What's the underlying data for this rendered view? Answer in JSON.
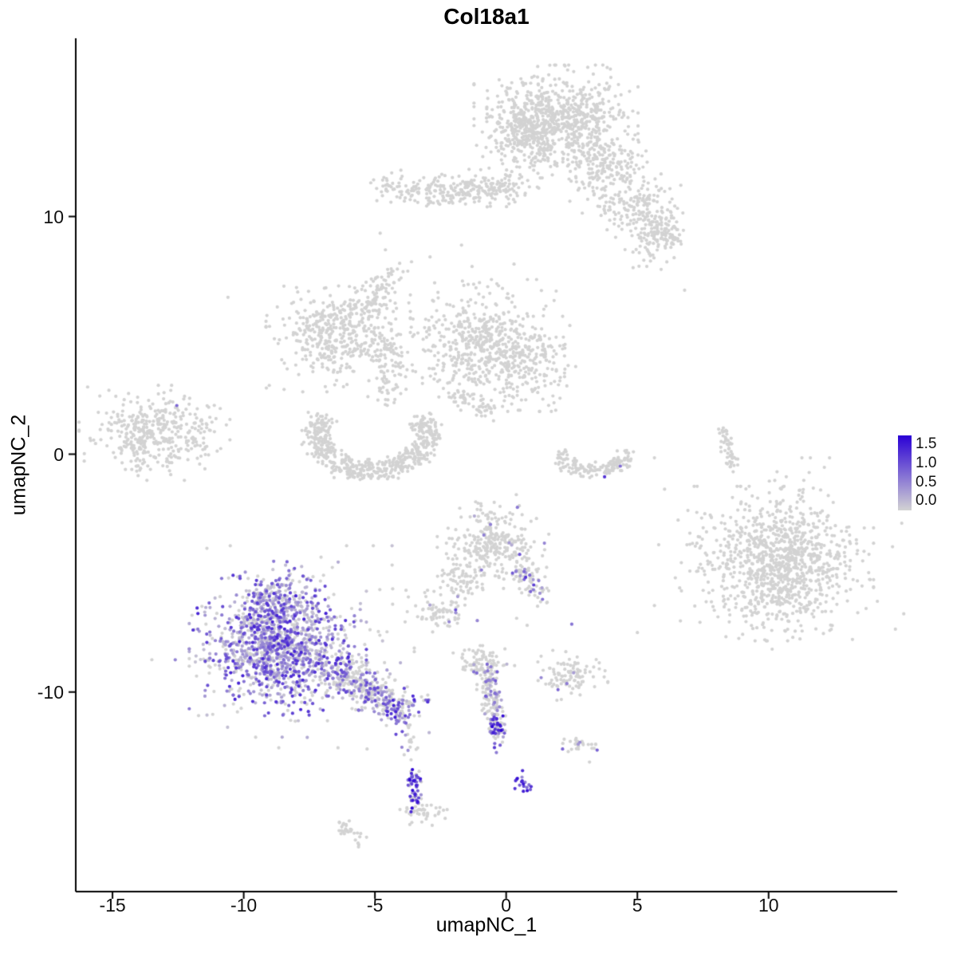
{
  "chart_data": {
    "type": "scatter",
    "title": "Col18a1",
    "xlabel": "umapNC_1",
    "ylabel": "umapNC_2",
    "xlim": [
      -16.4,
      14.9
    ],
    "ylim": [
      -18.4,
      17.5
    ],
    "xticks": [
      {
        "v": -15,
        "label": "-15"
      },
      {
        "v": -10,
        "label": "-10"
      },
      {
        "v": -5,
        "label": "-5"
      },
      {
        "v": 0,
        "label": "0"
      },
      {
        "v": 5,
        "label": "5"
      },
      {
        "v": 10,
        "label": "10"
      }
    ],
    "yticks": [
      {
        "v": 10,
        "label": "10"
      },
      {
        "v": 0,
        "label": "0"
      },
      {
        "v": -10,
        "label": "-10"
      }
    ],
    "grid": false,
    "point_radius": 2.1,
    "legend": {
      "labels": [
        {
          "v": 1.5,
          "text": "1.5"
        },
        {
          "v": 1.0,
          "text": "1.0"
        },
        {
          "v": 0.5,
          "text": "0.5"
        },
        {
          "v": 0.0,
          "text": "0.0"
        }
      ],
      "low_color": "#D3D3D3",
      "high_color": "#2A00D5",
      "scale_max": 1.65,
      "bar_value_top": 1.72,
      "bar_value_bottom": -0.24
    },
    "clusters": [
      {
        "name": "top-cap",
        "shape": "blob",
        "x": 1.9,
        "y": 14.0,
        "sx": 1.25,
        "sy": 0.95,
        "n": 820
      },
      {
        "name": "top-cap-left",
        "shape": "blob",
        "x": 0.6,
        "y": 13.4,
        "sx": 0.5,
        "sy": 0.6,
        "n": 120
      },
      {
        "name": "top-right-lobe",
        "shape": "blob",
        "x": 3.8,
        "y": 12.1,
        "sx": 0.75,
        "sy": 0.6,
        "n": 150
      },
      {
        "name": "top-band",
        "shape": "line",
        "x": -3.7,
        "y": 11.0,
        "x2": 0.7,
        "y2": 11.3,
        "jitter": 0.32,
        "n": 250
      },
      {
        "name": "band-left-tip",
        "shape": "blob",
        "x": -4.4,
        "y": 11.2,
        "sx": 0.35,
        "sy": 0.3,
        "n": 35
      },
      {
        "name": "right-upper-blob",
        "shape": "blob",
        "x": 4.9,
        "y": 10.5,
        "sx": 0.8,
        "sy": 0.55,
        "n": 160
      },
      {
        "name": "right-upper-tail",
        "shape": "line",
        "x": 5.5,
        "y": 10.0,
        "x2": 6.4,
        "y2": 9.1,
        "jitter": 0.28,
        "n": 70
      },
      {
        "name": "right-upper-blob2",
        "shape": "blob",
        "x": 5.6,
        "y": 8.9,
        "sx": 0.5,
        "sy": 0.45,
        "n": 80
      },
      {
        "name": "left-mid",
        "shape": "blob",
        "x": -6.4,
        "y": 5.0,
        "sx": 1.1,
        "sy": 0.95,
        "n": 430
      },
      {
        "name": "left-mid-chain-up",
        "shape": "line",
        "x": -5.4,
        "y": 5.9,
        "x2": -4.3,
        "y2": 7.6,
        "jitter": 0.3,
        "n": 90
      },
      {
        "name": "mid-chain-down",
        "shape": "line",
        "x": -4.4,
        "y": 4.9,
        "x2": -4.6,
        "y2": 2.0,
        "jitter": 0.28,
        "n": 80
      },
      {
        "name": "center-mid",
        "shape": "blob",
        "x": -0.9,
        "y": 4.6,
        "sx": 1.25,
        "sy": 1.1,
        "n": 540
      },
      {
        "name": "center-mid-right",
        "shape": "blob",
        "x": 0.9,
        "y": 3.8,
        "sx": 0.7,
        "sy": 0.8,
        "n": 150
      },
      {
        "name": "center-mid-diag",
        "shape": "line",
        "x": -2.0,
        "y": 2.5,
        "x2": -0.6,
        "y2": 1.8,
        "jitter": 0.18,
        "n": 45
      },
      {
        "name": "crescent",
        "shape": "arc",
        "x": -5.1,
        "y": 0.8,
        "rx": 2.1,
        "ry": 1.5,
        "a0": 150,
        "a1": 390,
        "rj": 0.22,
        "n": 540
      },
      {
        "name": "left-island",
        "shape": "blob",
        "x": -13.4,
        "y": 0.9,
        "sx": 1.15,
        "sy": 0.8,
        "n": 400
      },
      {
        "name": "mid-right-crescent",
        "shape": "arc",
        "x": 3.3,
        "y": -0.1,
        "rx": 1.15,
        "ry": 0.6,
        "a0": 160,
        "a1": 380,
        "rj": 0.3,
        "n": 140
      },
      {
        "name": "right-streak",
        "shape": "line",
        "x": 8.2,
        "y": 1.3,
        "x2": 8.6,
        "y2": -0.6,
        "jitter": 0.14,
        "n": 50
      },
      {
        "name": "far-right",
        "shape": "blob",
        "x": 10.5,
        "y": -4.6,
        "sx": 1.4,
        "sy": 1.3,
        "n": 950
      },
      {
        "name": "far-right-halo",
        "shape": "blob",
        "x": 10.4,
        "y": -4.4,
        "sx": 1.9,
        "sy": 1.7,
        "n": 150
      },
      {
        "name": "center-low",
        "shape": "blob",
        "x": -0.5,
        "y": -3.7,
        "sx": 0.85,
        "sy": 0.8,
        "n": 300,
        "expr": {
          "frac": 0.015,
          "lo": 0.3,
          "hi": 0.8,
          "pow": 1
        }
      },
      {
        "name": "center-low-chain",
        "shape": "line",
        "x": 0.3,
        "y": -4.7,
        "x2": 1.35,
        "y2": -5.9,
        "jitter": 0.22,
        "n": 70,
        "expr": {
          "frac": 0.3,
          "lo": 0.3,
          "hi": 1.25,
          "pow": 1.2
        }
      },
      {
        "name": "left-small-low",
        "shape": "blob",
        "x": -2.6,
        "y": -6.6,
        "sx": 0.5,
        "sy": 0.35,
        "n": 75,
        "expr": {
          "frac": 0.05,
          "lo": 0.3,
          "hi": 1.0,
          "pow": 1
        }
      },
      {
        "name": "main-purple",
        "shape": "blob",
        "x": -8.7,
        "y": -8.1,
        "sx": 1.35,
        "sy": 1.15,
        "n": 1100,
        "expr": {
          "frac": 0.8,
          "lo": 0.12,
          "hi": 1.4,
          "pow": 1.7
        }
      },
      {
        "name": "main-purple-top",
        "shape": "blob",
        "x": -8.9,
        "y": -6.0,
        "sx": 0.8,
        "sy": 0.6,
        "n": 180,
        "expr": {
          "frac": 0.75,
          "lo": 0.12,
          "hi": 1.25,
          "pow": 1.6
        }
      },
      {
        "name": "main-purple-halo",
        "shape": "blob",
        "x": -8.5,
        "y": -8.1,
        "sx": 2.0,
        "sy": 1.7,
        "n": 220,
        "expr": {
          "frac": 0.3,
          "lo": 0.1,
          "hi": 0.8,
          "pow": 1.5
        }
      },
      {
        "name": "purple-tail",
        "shape": "line",
        "x": -6.7,
        "y": -8.9,
        "x2": -4.3,
        "y2": -10.5,
        "jitter": 0.38,
        "n": 300,
        "expr": {
          "frac": 0.5,
          "lo": 0.15,
          "hi": 1.1,
          "pow": 1.5
        }
      },
      {
        "name": "tail-end",
        "shape": "blob",
        "x": -3.9,
        "y": -10.9,
        "sx": 0.45,
        "sy": 0.42,
        "n": 90,
        "expr": {
          "frac": 0.55,
          "lo": 0.2,
          "hi": 1.45,
          "pow": 1.1
        }
      },
      {
        "name": "tail-below-dots",
        "shape": "blob",
        "x": -3.7,
        "y": -12.3,
        "sx": 0.18,
        "sy": 0.45,
        "n": 14,
        "expr": {
          "frac": 0.4,
          "lo": 0.3,
          "hi": 1.1,
          "pow": 1
        }
      },
      {
        "name": "blue-streak",
        "shape": "line",
        "x": -3.55,
        "y": -13.3,
        "x2": -3.45,
        "y2": -14.9,
        "jitter": 0.13,
        "n": 50,
        "expr": {
          "frac": 0.85,
          "lo": 0.4,
          "hi": 1.6,
          "pow": 0.7
        }
      },
      {
        "name": "blue-streak-base",
        "shape": "blob",
        "x": -3.2,
        "y": -15.1,
        "sx": 0.38,
        "sy": 0.3,
        "n": 45
      },
      {
        "name": "center-streak",
        "shape": "line",
        "x": -0.75,
        "y": -8.8,
        "x2": -0.3,
        "y2": -11.9,
        "jitter": 0.2,
        "n": 180,
        "expr": {
          "frac": 0.3,
          "lo": 0.2,
          "hi": 1.0,
          "pow": 1.4
        }
      },
      {
        "name": "center-streak-blue",
        "shape": "blob",
        "x": -0.32,
        "y": -11.6,
        "sx": 0.2,
        "sy": 0.38,
        "n": 26,
        "expr": {
          "frac": 0.95,
          "lo": 0.6,
          "hi": 1.65,
          "pow": 0.7
        }
      },
      {
        "name": "center-streak-cap",
        "shape": "blob",
        "x": -0.9,
        "y": -8.8,
        "sx": 0.5,
        "sy": 0.3,
        "n": 70,
        "expr": {
          "frac": 0.06,
          "lo": 0.2,
          "hi": 0.8,
          "pow": 1
        }
      },
      {
        "name": "right-low-blob",
        "shape": "blob",
        "x": 2.4,
        "y": -9.3,
        "sx": 0.6,
        "sy": 0.42,
        "n": 100,
        "expr": {
          "frac": 0.08,
          "lo": 0.3,
          "hi": 1.1,
          "pow": 1
        }
      },
      {
        "name": "right-low-dots",
        "shape": "blob",
        "x": 2.8,
        "y": -12.3,
        "sx": 0.32,
        "sy": 0.26,
        "n": 28,
        "expr": {
          "frac": 0.12,
          "lo": 0.3,
          "hi": 0.9,
          "pow": 1
        }
      },
      {
        "name": "blue-dots-bottom",
        "shape": "blob",
        "x": 0.65,
        "y": -13.9,
        "sx": 0.17,
        "sy": 0.24,
        "n": 18,
        "expr": {
          "frac": 0.9,
          "lo": 0.5,
          "hi": 1.55,
          "pow": 0.7
        }
      },
      {
        "name": "grey-diag-bottom",
        "shape": "line",
        "x": -6.3,
        "y": -15.6,
        "x2": -5.6,
        "y2": -16.2,
        "jitter": 0.16,
        "n": 30
      },
      {
        "name": "center-low2",
        "shape": "blob",
        "x": -1.7,
        "y": -5.3,
        "sx": 0.42,
        "sy": 0.3,
        "n": 55
      }
    ],
    "singles": [
      {
        "x": -12.55,
        "y": 2.05,
        "v": 0.85
      },
      {
        "x": 3.75,
        "y": -0.95,
        "v": 1.25
      },
      {
        "x": 4.35,
        "y": -0.5,
        "v": 0.8
      },
      {
        "x": -0.85,
        "y": -3.4,
        "v": 0.65
      },
      {
        "x": 2.5,
        "y": -7.15,
        "v": 0.75
      },
      {
        "x": 1.05,
        "y": -5.5,
        "v": 1.15
      },
      {
        "x": 2.15,
        "y": -12.4,
        "v": 0.85
      },
      {
        "x": -1.1,
        "y": -7.0,
        "v": 0.6
      },
      {
        "x": 5.0,
        "y": -7.5,
        "v": 0
      },
      {
        "x": -10.6,
        "y": 6.6,
        "v": 0
      },
      {
        "x": 6.8,
        "y": 6.9,
        "v": 0
      },
      {
        "x": -2.9,
        "y": 8.3,
        "v": 0
      },
      {
        "x": -4.8,
        "y": 9.3,
        "v": 0
      },
      {
        "x": -4.6,
        "y": 8.6,
        "v": 0
      },
      {
        "x": 0.3,
        "y": 8.0,
        "v": 0
      },
      {
        "x": -1.3,
        "y": 7.9,
        "v": 0
      },
      {
        "x": -1.7,
        "y": 8.8,
        "v": 0
      },
      {
        "x": 0.4,
        "y": -6.9,
        "v": 0
      },
      {
        "x": 0.8,
        "y": -7.2,
        "v": 0
      },
      {
        "x": -5.3,
        "y": -12.4,
        "v": 0
      }
    ]
  }
}
